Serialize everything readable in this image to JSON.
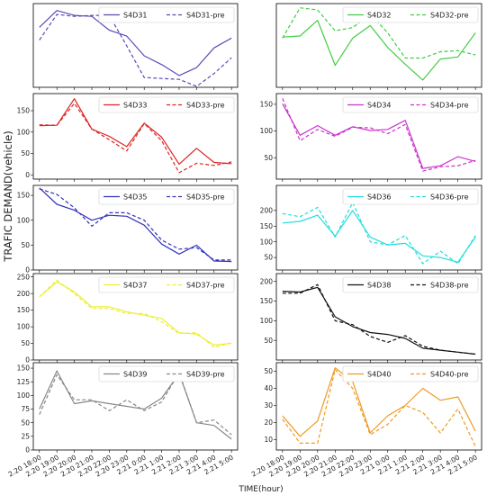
{
  "ylabel": "TRAFIC DEMAND(vehicle)",
  "xlabel": "TIME(hour)",
  "x_ticks": [
    "2.20 18:00",
    "2.20 19:00",
    "2.20 20:00",
    "2.20 21:00",
    "2.20 22:00",
    "2.20 23:00",
    "2.21 0:00",
    "2.21 1:00",
    "2.21 2:00",
    "2.21 3:00",
    "2.21 4:00",
    "2.21 5:00"
  ],
  "chart_data": [
    {
      "type": "line",
      "ylim": [
        0,
        85
      ],
      "yticks": [],
      "color": "#5b4bb5",
      "series": [
        {
          "name": "S4D31",
          "style": "solid",
          "values": [
            61,
            78,
            73,
            72,
            58,
            52,
            32,
            23,
            12,
            20,
            40,
            50
          ]
        },
        {
          "name": "S4D31-pre",
          "style": "dashed",
          "values": [
            48,
            74,
            72,
            73,
            73,
            42,
            10,
            9,
            8,
            1,
            14,
            30
          ]
        }
      ]
    },
    {
      "type": "line",
      "ylim": [
        10,
        90
      ],
      "yticks": [],
      "color": "#44cc44",
      "series": [
        {
          "name": "S4D32",
          "style": "solid",
          "values": [
            58,
            59,
            74,
            31,
            57,
            69,
            48,
            32,
            17,
            37,
            39,
            62
          ]
        },
        {
          "name": "S4D32-pre",
          "style": "dashed",
          "values": [
            57,
            86,
            84,
            64,
            67,
            80,
            62,
            38,
            38,
            44,
            45,
            41
          ]
        }
      ]
    },
    {
      "type": "line",
      "ylim": [
        -10,
        190
      ],
      "yticks": [
        0,
        50,
        100,
        150
      ],
      "color": "#dd2222",
      "series": [
        {
          "name": "S4D33",
          "style": "solid",
          "values": [
            115,
            116,
            178,
            107,
            90,
            66,
            121,
            88,
            25,
            62,
            29,
            26
          ]
        },
        {
          "name": "S4D33-pre",
          "style": "dashed",
          "values": [
            117,
            116,
            167,
            107,
            82,
            56,
            120,
            80,
            5,
            27,
            22,
            30
          ]
        }
      ]
    },
    {
      "type": "line",
      "ylim": [
        10,
        170
      ],
      "yticks": [
        50,
        100,
        150
      ],
      "color": "#cc33cc",
      "series": [
        {
          "name": "S4D34",
          "style": "solid",
          "values": [
            151,
            92,
            110,
            92,
            108,
            101,
            103,
            120,
            30,
            35,
            52,
            43
          ]
        },
        {
          "name": "S4D34-pre",
          "style": "dashed",
          "values": [
            161,
            82,
            103,
            90,
            107,
            106,
            95,
            112,
            25,
            33,
            35,
            45
          ]
        }
      ]
    },
    {
      "type": "line",
      "ylim": [
        0,
        170
      ],
      "yticks": [
        0,
        50,
        100,
        150
      ],
      "color": "#3333bb",
      "series": [
        {
          "name": "S4D35",
          "style": "solid",
          "values": [
            165,
            132,
            120,
            100,
            110,
            108,
            90,
            52,
            32,
            50,
            18,
            17
          ]
        },
        {
          "name": "S4D35-pre",
          "style": "dashed",
          "values": [
            163,
            152,
            125,
            88,
            115,
            115,
            100,
            60,
            42,
            45,
            20,
            20
          ]
        }
      ]
    },
    {
      "type": "line",
      "ylim": [
        10,
        280
      ],
      "yticks": [
        50,
        100,
        150,
        200
      ],
      "color": "#22dddd",
      "series": [
        {
          "name": "S4D36",
          "style": "solid",
          "values": [
            160,
            165,
            185,
            118,
            200,
            115,
            90,
            95,
            55,
            50,
            35,
            115
          ]
        },
        {
          "name": "S4D36-pre",
          "style": "dashed",
          "values": [
            190,
            180,
            210,
            115,
            225,
            100,
            90,
            120,
            30,
            70,
            30,
            120
          ]
        }
      ]
    },
    {
      "type": "line",
      "ylim": [
        0,
        260
      ],
      "yticks": [
        0,
        50,
        100,
        150,
        200,
        250
      ],
      "color": "#eeee33",
      "series": [
        {
          "name": "S4D37",
          "style": "solid",
          "values": [
            190,
            235,
            205,
            160,
            160,
            145,
            135,
            125,
            82,
            78,
            45,
            50
          ]
        },
        {
          "name": "S4D37-pre",
          "style": "dashed",
          "values": [
            190,
            240,
            200,
            155,
            155,
            140,
            140,
            115,
            80,
            82,
            38,
            52
          ]
        }
      ]
    },
    {
      "type": "line",
      "ylim": [
        0,
        220
      ],
      "yticks": [
        50,
        100,
        150,
        200
      ],
      "color": "#111111",
      "series": [
        {
          "name": "S4D38",
          "style": "solid",
          "values": [
            175,
            173,
            185,
            110,
            85,
            70,
            65,
            55,
            30,
            25,
            20,
            15
          ]
        },
        {
          "name": "S4D38-pre",
          "style": "dashed",
          "values": [
            170,
            170,
            192,
            100,
            90,
            60,
            45,
            62,
            35,
            25,
            20,
            15
          ]
        }
      ]
    },
    {
      "type": "line",
      "ylim": [
        0,
        160
      ],
      "yticks": [
        0,
        25,
        50,
        75,
        100,
        125,
        150
      ],
      "color": "#888888",
      "series": [
        {
          "name": "S4D39",
          "style": "solid",
          "values": [
            75,
            145,
            85,
            90,
            85,
            80,
            75,
            95,
            140,
            50,
            45,
            20
          ]
        },
        {
          "name": "S4D39-pre",
          "style": "dashed",
          "values": [
            65,
            138,
            92,
            92,
            72,
            92,
            72,
            88,
            142,
            50,
            55,
            28
          ]
        }
      ]
    },
    {
      "type": "line",
      "ylim": [
        4,
        55
      ],
      "yticks": [
        10,
        20,
        30,
        40,
        50
      ],
      "color": "#ee9922",
      "series": [
        {
          "name": "S4D40",
          "style": "solid",
          "values": [
            24,
            12,
            21,
            52,
            44,
            14,
            24,
            30,
            40,
            33,
            35,
            15
          ]
        },
        {
          "name": "S4D40-pre",
          "style": "dashed",
          "values": [
            22,
            8,
            8,
            51,
            40,
            13,
            19,
            30,
            26,
            14,
            28,
            6
          ]
        }
      ]
    }
  ]
}
